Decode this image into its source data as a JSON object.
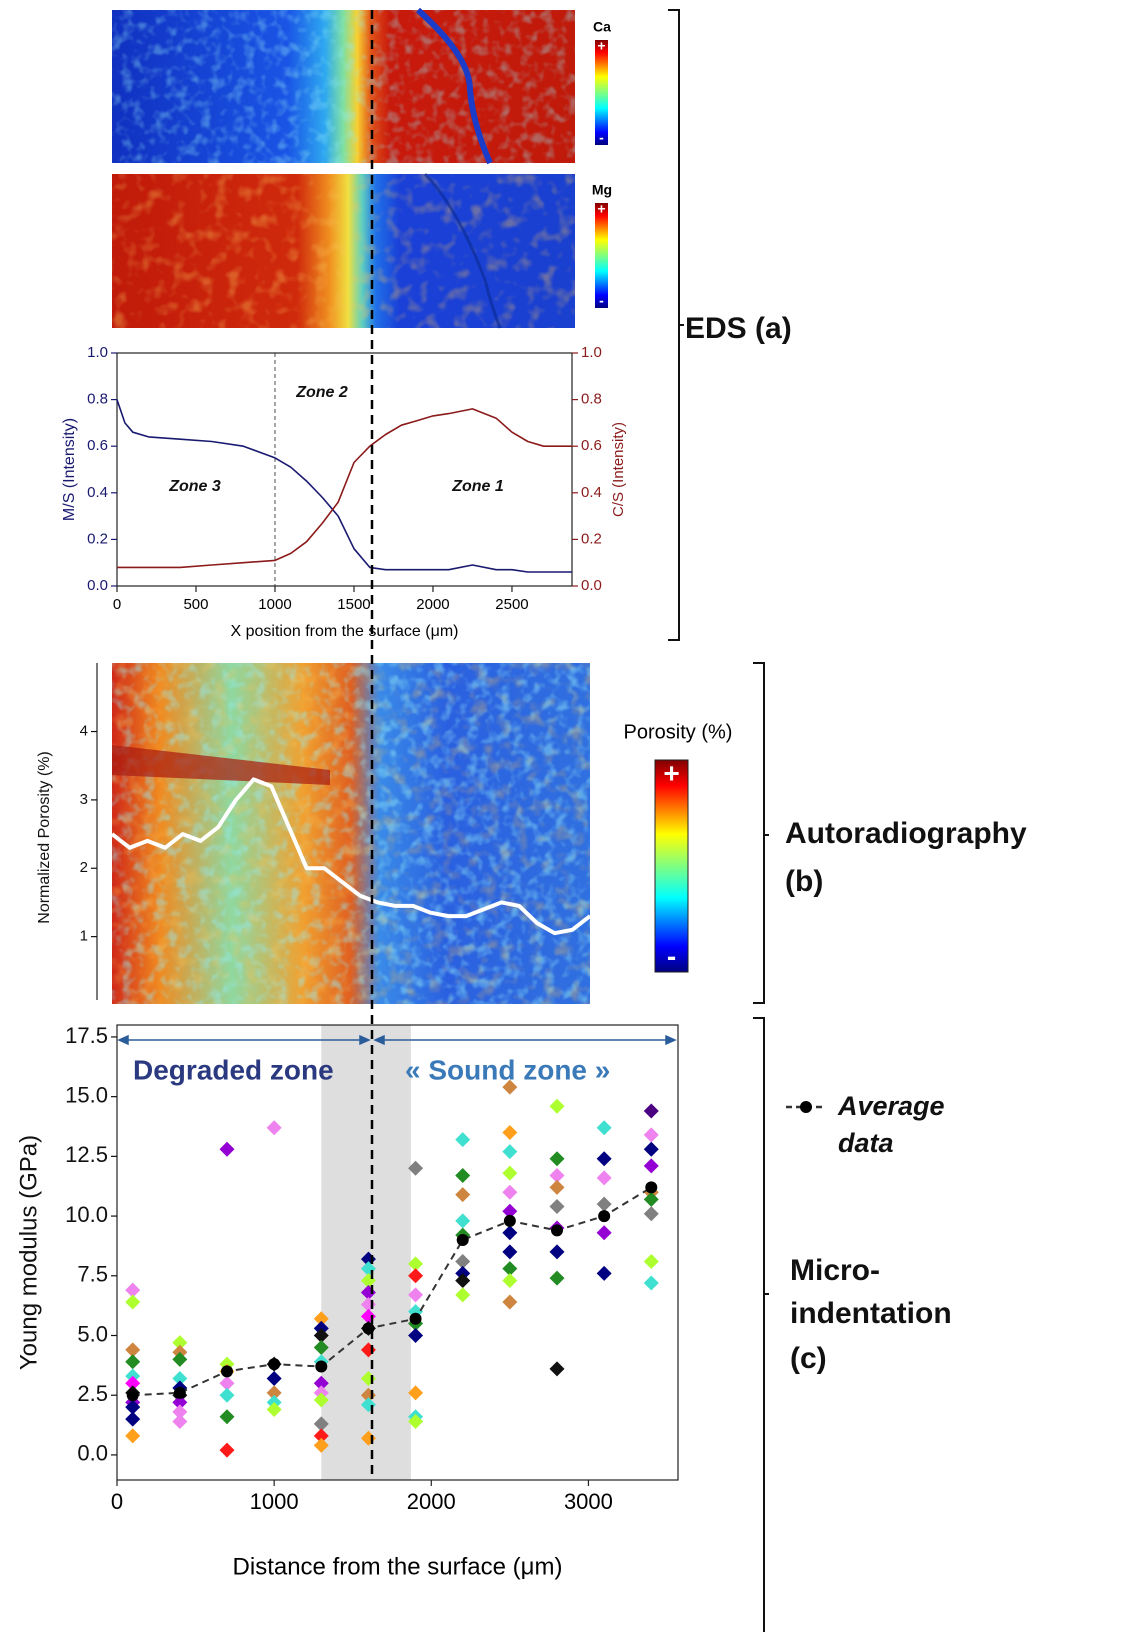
{
  "eds_maps": [
    {
      "element": "Ca",
      "max_label": "+",
      "min_label": "-"
    },
    {
      "element": "Mg",
      "max_label": "+",
      "min_label": "-"
    }
  ],
  "panel_labels": [
    [
      "EDS (a)"
    ],
    [
      "Autoradiography",
      "(b)"
    ],
    [
      "Micro-",
      "indentation",
      "(c)"
    ]
  ],
  "chart_data": [
    {
      "type": "line",
      "xlabel": "X position from the surface (μm)",
      "ylabel": "M/S (Intensity)",
      "y2label": "C/S (Intensity)",
      "xlim": [
        0,
        2880
      ],
      "xticks": [
        0,
        500,
        1000,
        1500,
        2000,
        2500
      ],
      "ylim": [
        0,
        1
      ],
      "yticks": [
        {
          "value": 0,
          "label": "0.0"
        },
        0.2,
        0.4,
        0.6,
        0.8,
        {
          "value": 1,
          "label": "1.0"
        }
      ],
      "y2lim": [
        0,
        1
      ],
      "y2ticks": [
        {
          "value": 0,
          "label": "0.0"
        },
        0.2,
        0.4,
        0.6,
        0.8,
        {
          "value": 1,
          "label": "1.0"
        }
      ],
      "annotations": [
        "Zone 3",
        "Zone 2",
        "Zone 1"
      ],
      "vlines": [
        1000
      ],
      "x": [
        0,
        50,
        100,
        200,
        400,
        600,
        800,
        1000,
        1100,
        1200,
        1300,
        1400,
        1500,
        1600,
        1700,
        1800,
        1900,
        2000,
        2100,
        2250,
        2400,
        2500,
        2600,
        2700,
        2880
      ],
      "series": [
        {
          "color": "#191970",
          "values": [
            0.8,
            0.7,
            0.66,
            0.64,
            0.63,
            0.62,
            0.6,
            0.55,
            0.51,
            0.45,
            0.38,
            0.3,
            0.16,
            0.08,
            0.07,
            0.07,
            0.07,
            0.07,
            0.07,
            0.09,
            0.07,
            0.07,
            0.06,
            0.06,
            0.06
          ]
        },
        {
          "color": "#8b1a1a",
          "axis": "y2",
          "values": [
            0.08,
            0.08,
            0.08,
            0.08,
            0.08,
            0.09,
            0.1,
            0.11,
            0.14,
            0.19,
            0.27,
            0.36,
            0.53,
            0.6,
            0.65,
            0.69,
            0.71,
            0.73,
            0.74,
            0.76,
            0.72,
            0.66,
            0.62,
            0.6,
            0.6
          ]
        }
      ]
    },
    {
      "type": "line",
      "ylabel": "Normalized Porosity (%)",
      "ylim": [
        0,
        4.9
      ],
      "yticks": [
        1,
        2,
        3,
        4
      ],
      "colorbar": {
        "title": "Porosity (%)",
        "max_label": "+",
        "min_label": "-"
      },
      "series": [
        {
          "color": "#ffffff",
          "values": [
            2.5,
            2.3,
            2.4,
            2.3,
            2.5,
            2.4,
            2.6,
            3.0,
            3.3,
            3.2,
            2.6,
            2.0,
            2.0,
            1.8,
            1.6,
            1.5,
            1.45,
            1.45,
            1.35,
            1.3,
            1.3,
            1.4,
            1.5,
            1.45,
            1.2,
            1.05,
            1.1,
            1.3
          ]
        }
      ]
    },
    {
      "type": "scatter",
      "xlabel": "Distance from the surface (μm)",
      "ylabel": "Young modulus (GPa)",
      "xlim": [
        0,
        3570
      ],
      "xticks": [
        0,
        1000,
        2000,
        3000
      ],
      "ylim": [
        -1.05,
        18
      ],
      "yticks": [
        {
          "value": 0,
          "label": "0.0"
        },
        2.5,
        {
          "value": 5,
          "label": "5.0"
        },
        7.5,
        {
          "value": 10,
          "label": "10.0"
        },
        12.5,
        {
          "value": 15,
          "label": "15.0"
        },
        17.5
      ],
      "xspan": [
        1300,
        1870
      ],
      "annotations": [
        "Degraded zone",
        "« Sound zone »"
      ],
      "points": {
        "x": [
          100,
          100,
          100,
          100,
          100,
          100,
          100,
          100,
          100,
          100,
          100,
          400,
          400,
          400,
          400,
          400,
          400,
          400,
          400,
          400,
          700,
          700,
          700,
          700,
          700,
          700,
          700,
          1000,
          1000,
          1000,
          1000,
          1000,
          1000,
          1300,
          1300,
          1300,
          1300,
          1300,
          1300,
          1300,
          1300,
          1300,
          1300,
          1300,
          1600,
          1600,
          1600,
          1600,
          1600,
          1600,
          1600,
          1600,
          1600,
          1600,
          1600,
          1600,
          1900,
          1900,
          1900,
          1900,
          1900,
          1900,
          1900,
          1900,
          1900,
          1900,
          2200,
          2200,
          2200,
          2200,
          2200,
          2200,
          2200,
          2200,
          2200,
          2500,
          2500,
          2500,
          2500,
          2500,
          2500,
          2500,
          2500,
          2500,
          2500,
          2500,
          2800,
          2800,
          2800,
          2800,
          2800,
          2800,
          2800,
          2800,
          2800,
          3100,
          3100,
          3100,
          3100,
          3100,
          3100,
          3400,
          3400,
          3400,
          3400,
          3400,
          3400,
          3400,
          3400,
          3400
        ],
        "values": [
          6.9,
          6.4,
          4.4,
          3.9,
          3.3,
          3.0,
          2.6,
          2.2,
          2.0,
          1.5,
          0.8,
          4.7,
          4.3,
          4.0,
          3.2,
          2.8,
          2.5,
          2.2,
          1.8,
          1.4,
          12.8,
          3.8,
          3.5,
          3.0,
          2.5,
          1.6,
          0.2,
          13.7,
          3.8,
          3.2,
          2.6,
          2.2,
          1.9,
          5.7,
          5.3,
          5.0,
          4.5,
          3.9,
          3.0,
          2.6,
          2.3,
          1.3,
          0.8,
          0.4,
          8.2,
          7.8,
          7.3,
          6.8,
          6.3,
          5.8,
          5.3,
          4.4,
          3.2,
          2.5,
          2.1,
          0.7,
          12.0,
          8.0,
          7.5,
          6.7,
          6.0,
          5.5,
          5.0,
          2.6,
          1.6,
          1.4,
          13.2,
          11.7,
          10.9,
          9.8,
          9.2,
          8.1,
          7.6,
          7.3,
          6.7,
          15.4,
          13.5,
          12.7,
          11.8,
          11.0,
          10.2,
          9.3,
          8.5,
          7.8,
          7.3,
          6.4,
          14.6,
          12.4,
          11.7,
          11.2,
          10.4,
          9.5,
          8.5,
          7.4,
          3.6,
          13.7,
          12.4,
          11.6,
          10.5,
          9.3,
          7.6,
          14.4,
          13.4,
          12.8,
          12.1,
          11.0,
          10.7,
          10.1,
          8.1,
          7.2
        ],
        "colors": [
          "#ee82ee",
          "#adff2f",
          "#cd853f",
          "#228b22",
          "#40e0d0",
          "#ff00ff",
          "#111111",
          "#9400d3",
          "#000080",
          "#000080",
          "#ff9f1c",
          "#adff2f",
          "#cd853f",
          "#228b22",
          "#40e0d0",
          "#000080",
          "#111111",
          "#9400d3",
          "#ee82ee",
          "#ee82ee",
          "#9400d3",
          "#adff2f",
          "#ff9f1c",
          "#ee82ee",
          "#40e0d0",
          "#228b22",
          "#ff1a1a",
          "#ee82ee",
          "#111111",
          "#000080",
          "#cd853f",
          "#40e0d0",
          "#adff2f",
          "#ff9f1c",
          "#000080",
          "#111111",
          "#228b22",
          "#40e0d0",
          "#9400d3",
          "#ee82ee",
          "#adff2f",
          "#808080",
          "#ff1a1a",
          "#ff9f1c",
          "#000080",
          "#40e0d0",
          "#adff2f",
          "#9400d3",
          "#ee82ee",
          "#ff00ff",
          "#111111",
          "#ff1a1a",
          "#adff2f",
          "#cd853f",
          "#40e0d0",
          "#ff9f1c",
          "#808080",
          "#adff2f",
          "#ff1a1a",
          "#ee82ee",
          "#40e0d0",
          "#228b22",
          "#000080",
          "#ff9f1c",
          "#40e0d0",
          "#adff2f",
          "#40e0d0",
          "#228b22",
          "#cd853f",
          "#40e0d0",
          "#228b22",
          "#808080",
          "#000080",
          "#111111",
          "#adff2f",
          "#cd853f",
          "#ff9f1c",
          "#40e0d0",
          "#adff2f",
          "#ee82ee",
          "#9400d3",
          "#000080",
          "#000080",
          "#228b22",
          "#adff2f",
          "#cd853f",
          "#adff2f",
          "#228b22",
          "#ee82ee",
          "#cd853f",
          "#808080",
          "#9400d3",
          "#000080",
          "#228b22",
          "#111111",
          "#40e0d0",
          "#000080",
          "#ee82ee",
          "#808080",
          "#9400d3",
          "#000080",
          "#4b0082",
          "#ee82ee",
          "#000080",
          "#9400d3",
          "#cd853f",
          "#228b22",
          "#808080",
          "#adff2f",
          "#40e0d0"
        ]
      },
      "x": [
        100,
        400,
        700,
        1000,
        1300,
        1600,
        1900,
        2200,
        2500,
        2800,
        3100,
        3400
      ],
      "series": [
        {
          "name": "Average data",
          "color": "#333333",
          "values": [
            2.5,
            2.6,
            3.5,
            3.8,
            3.7,
            5.3,
            5.7,
            9.0,
            9.8,
            9.4,
            10.0,
            11.2
          ]
        }
      ]
    }
  ]
}
